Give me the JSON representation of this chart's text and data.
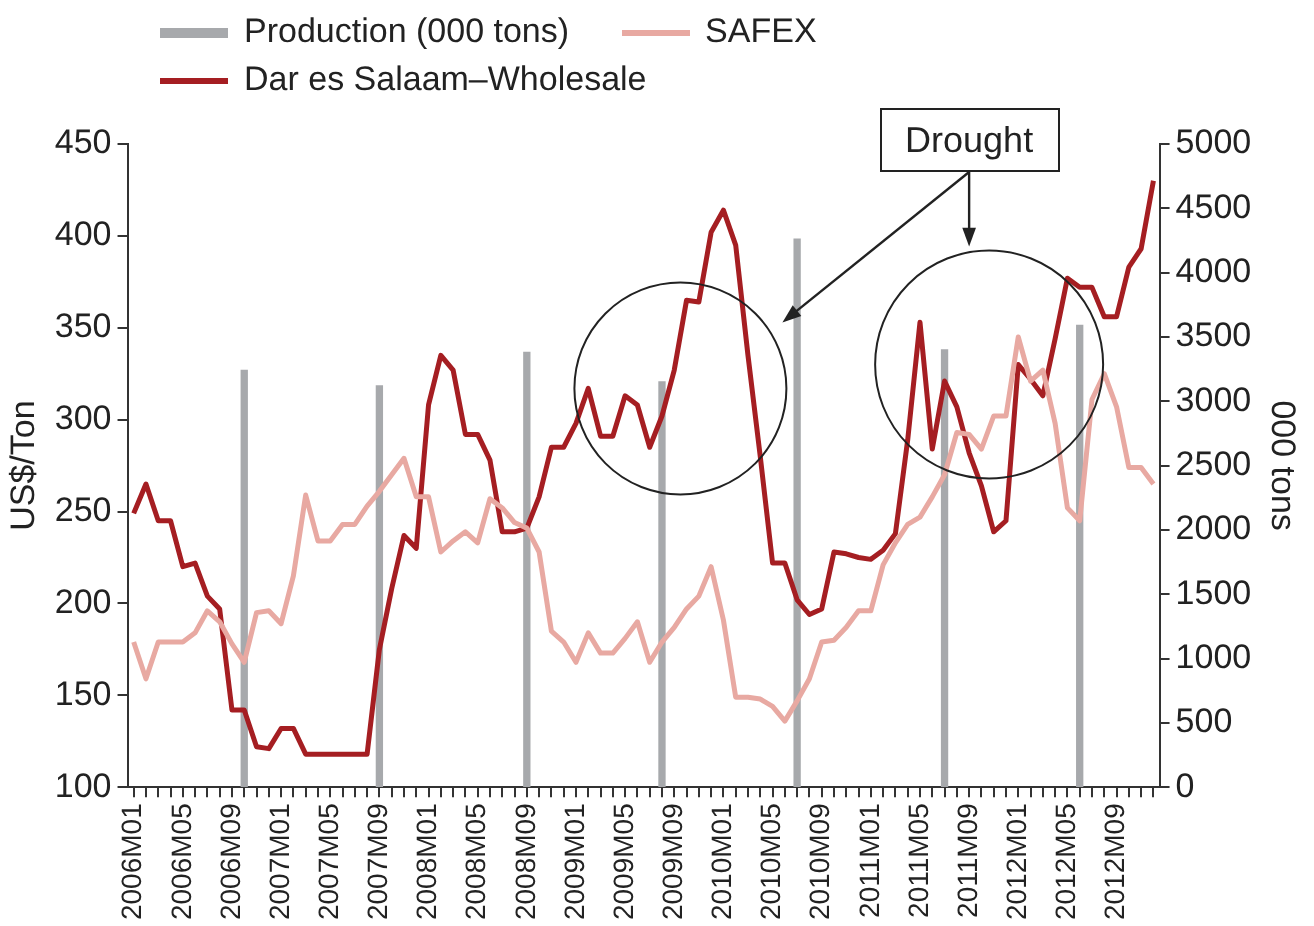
{
  "chart_data": {
    "type": "line",
    "categories": [
      "2006M01",
      null,
      null,
      null,
      "2006M05",
      null,
      null,
      null,
      "2006M09",
      null,
      null,
      null,
      "2007M01",
      null,
      null,
      null,
      "2007M05",
      null,
      null,
      null,
      "2007M09",
      null,
      null,
      null,
      "2008M01",
      null,
      null,
      null,
      "2008M05",
      null,
      null,
      null,
      "2008M09",
      null,
      null,
      null,
      "2009M01",
      null,
      null,
      null,
      "2009M05",
      null,
      null,
      null,
      "2009M09",
      null,
      null,
      null,
      "2010M01",
      null,
      null,
      null,
      "2010M05",
      null,
      null,
      null,
      "2010M09",
      null,
      null,
      null,
      "2011M01",
      null,
      null,
      null,
      "2011M05",
      null,
      null,
      null,
      "2011M09",
      null,
      null,
      null,
      "2012M01",
      null,
      null,
      null,
      "2012M05",
      null,
      null,
      null,
      "2012M09",
      null,
      null,
      null
    ],
    "series": [
      {
        "name": "Production (000 tons)",
        "type": "bar",
        "axis": "y2",
        "color": "#a7a9ac",
        "values": [
          null,
          null,
          null,
          null,
          null,
          null,
          null,
          null,
          null,
          3240,
          null,
          null,
          null,
          null,
          null,
          null,
          null,
          null,
          null,
          null,
          3120,
          null,
          null,
          null,
          null,
          null,
          null,
          null,
          null,
          null,
          null,
          null,
          3380,
          null,
          null,
          null,
          null,
          null,
          null,
          null,
          null,
          null,
          null,
          3150,
          null,
          null,
          null,
          null,
          null,
          null,
          null,
          null,
          null,
          null,
          4260,
          null,
          null,
          null,
          null,
          null,
          null,
          null,
          null,
          null,
          null,
          null,
          3400,
          null,
          null,
          null,
          null,
          null,
          null,
          null,
          null,
          null,
          null,
          3590,
          null,
          null,
          null,
          null,
          null,
          null
        ]
      },
      {
        "name": "SAFEX",
        "color": "#e8a9a2",
        "values": [
          179,
          159,
          179,
          179,
          179,
          184,
          196,
          190,
          178,
          168,
          195,
          196,
          189,
          215,
          259,
          234,
          234,
          243,
          243,
          253,
          261,
          270,
          279,
          258,
          258,
          228,
          234,
          239,
          233,
          257,
          252,
          244,
          241,
          228,
          185,
          179,
          168,
          184,
          173,
          173,
          181,
          190,
          168,
          179,
          187,
          197,
          204,
          220,
          191,
          149,
          149,
          148,
          144,
          136,
          147,
          159,
          179,
          180,
          187,
          196,
          196,
          221,
          233,
          243,
          247,
          258,
          270,
          293,
          292,
          284,
          302,
          302,
          345,
          321,
          327,
          298,
          252,
          245,
          311,
          325,
          307,
          274,
          274,
          265
        ]
      },
      {
        "name": "Dar es Salaam–Wholesale",
        "color": "#a51e22",
        "values": [
          249,
          265,
          245,
          245,
          220,
          222,
          204,
          197,
          142,
          142,
          122,
          121,
          132,
          132,
          118,
          118,
          118,
          118,
          118,
          118,
          175,
          208,
          237,
          230,
          308,
          335,
          327,
          292,
          292,
          278,
          239,
          239,
          241,
          258,
          285,
          285,
          298,
          317,
          291,
          291,
          313,
          308,
          285,
          302,
          327,
          365,
          364,
          402,
          414,
          395,
          335,
          280,
          222,
          222,
          202,
          194,
          197,
          228,
          227,
          225,
          224,
          229,
          238,
          289,
          353,
          284,
          321,
          307,
          282,
          264,
          239,
          245,
          330,
          322,
          313,
          344,
          377,
          372,
          372,
          356,
          356,
          383,
          393,
          430
        ]
      }
    ],
    "ylabel": "US$/Ton",
    "y2label": "000 tons",
    "ylim": [
      100,
      450
    ],
    "yticks": [
      100,
      150,
      200,
      250,
      300,
      350,
      400,
      450
    ],
    "y2lim": [
      0,
      5000
    ],
    "y2ticks": [
      0,
      500,
      1000,
      1500,
      2000,
      2500,
      3000,
      3500,
      4000,
      4500,
      5000
    ],
    "annotations": [
      {
        "text": "Drought",
        "x": "2011M09"
      }
    ],
    "grid": false,
    "legend": "top",
    "marker": "none",
    "line_style": "solid"
  }
}
